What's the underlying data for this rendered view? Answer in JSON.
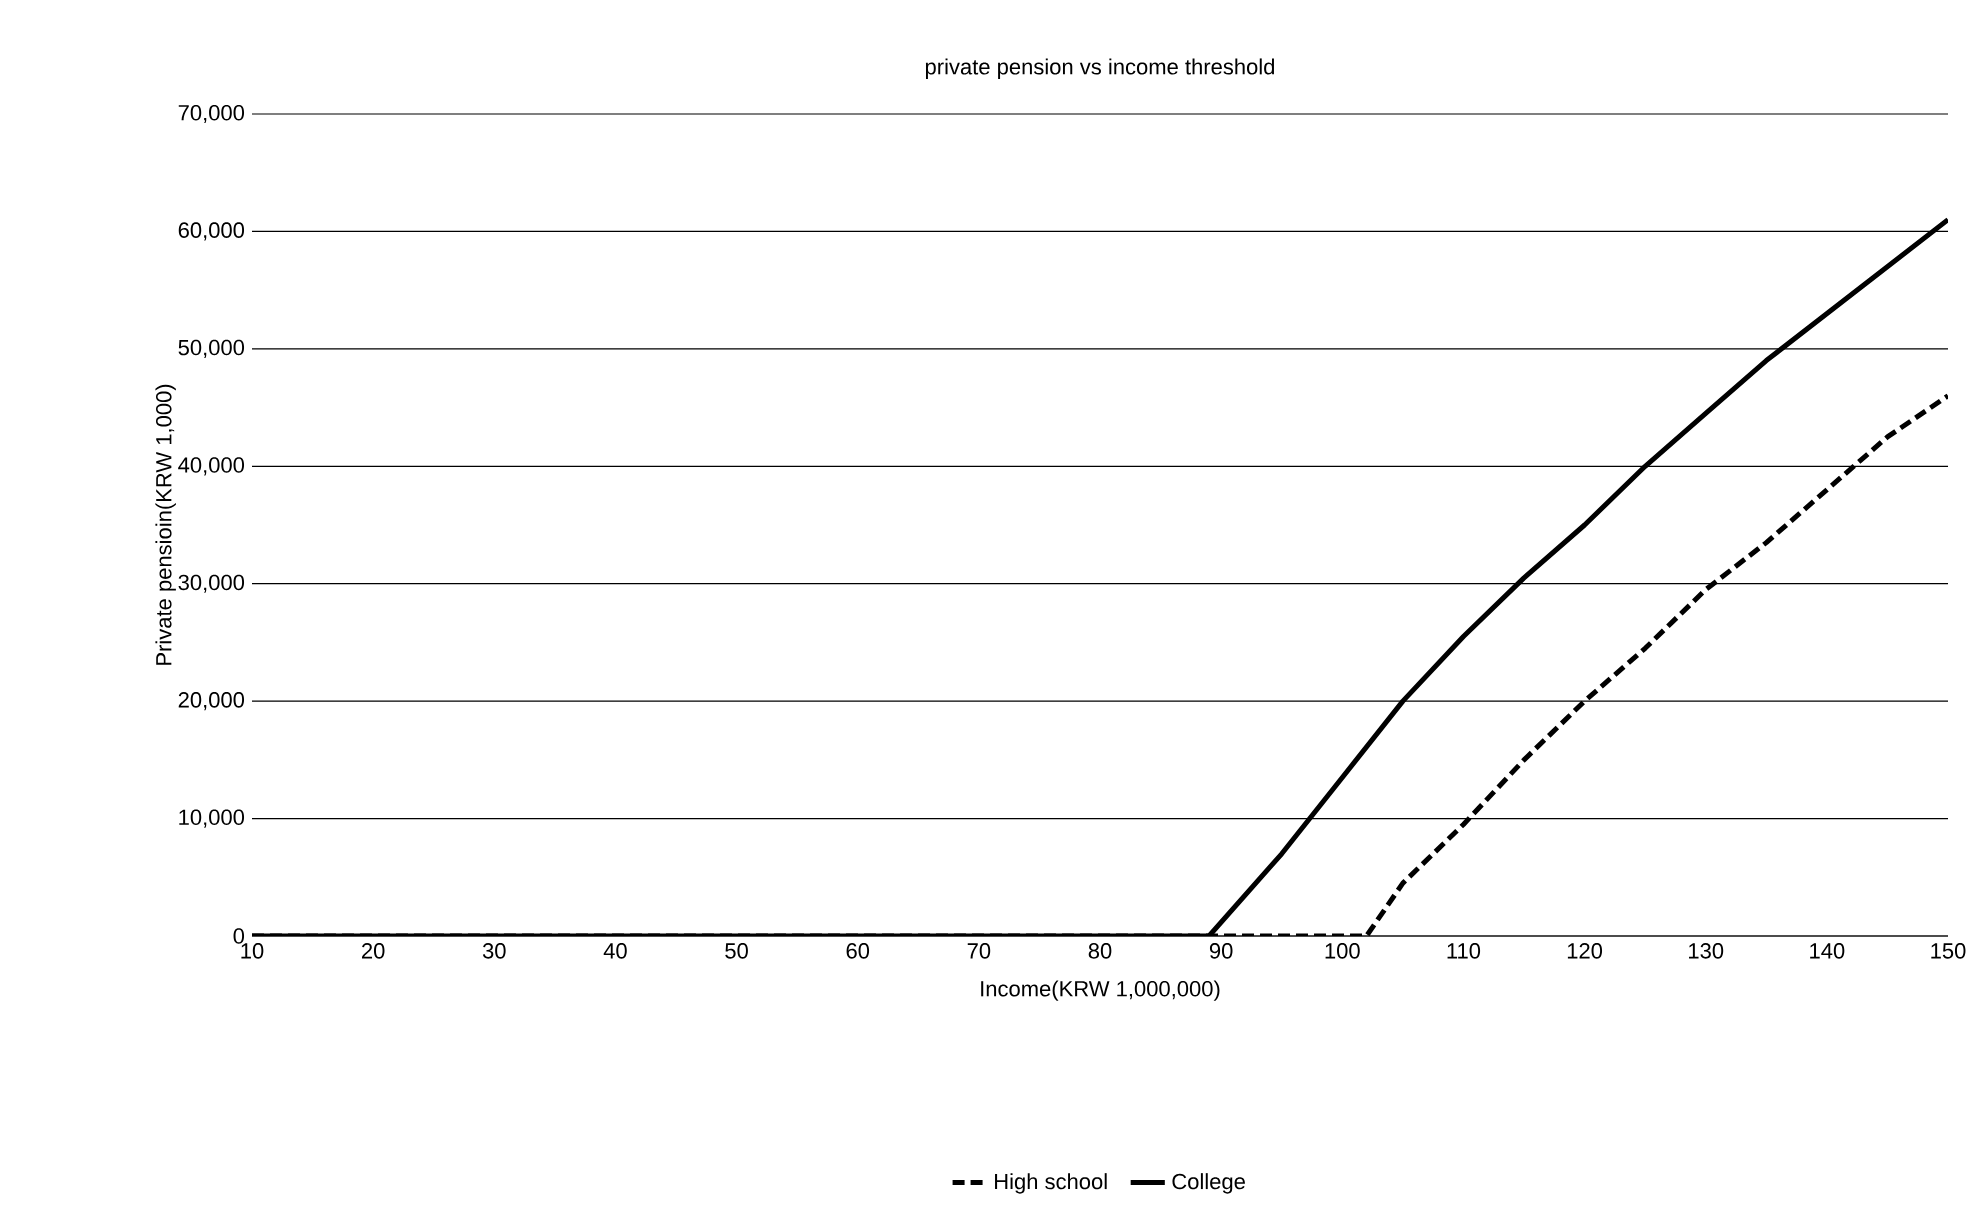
{
  "chart_data": {
    "type": "line",
    "title": "private pension vs income threshold",
    "xlabel": "Income(KRW 1,000,000)",
    "ylabel": "Private pensioin(KRW 1,000)",
    "xlim": [
      10,
      150
    ],
    "xticks": [
      10,
      20,
      30,
      40,
      50,
      60,
      70,
      80,
      90,
      100,
      110,
      120,
      130,
      140,
      150
    ],
    "ylim": [
      0,
      70000
    ],
    "yticks": [
      {
        "value": 0,
        "label": "0"
      },
      {
        "value": 10000,
        "label": "10,000"
      },
      {
        "value": 20000,
        "label": "20,000"
      },
      {
        "value": 30000,
        "label": "30,000"
      },
      {
        "value": 40000,
        "label": "40,000"
      },
      {
        "value": 50000,
        "label": "50,000"
      },
      {
        "value": 60000,
        "label": "60,000"
      },
      {
        "value": 70000,
        "label": "70,000"
      }
    ],
    "grid": "y",
    "legend": "bottom",
    "marker": "none",
    "series": [
      {
        "name": "High school",
        "color": "#000000",
        "line_style": "dashed",
        "x": [
          10,
          50,
          90,
          102,
          105,
          110,
          115,
          120,
          125,
          130,
          135,
          140,
          145,
          150
        ],
        "values": [
          0,
          0,
          0,
          0,
          4500,
          9500,
          15000,
          20000,
          24500,
          29500,
          33500,
          38000,
          42500,
          46000
        ]
      },
      {
        "name": "College",
        "color": "#000000",
        "line_style": "solid",
        "x": [
          10,
          50,
          89,
          95,
          100,
          105,
          110,
          115,
          120,
          125,
          130,
          135,
          140,
          145,
          150
        ],
        "values": [
          0,
          0,
          0,
          7000,
          13500,
          20000,
          25500,
          30500,
          35000,
          40000,
          44500,
          49000,
          53000,
          57000,
          61000
        ]
      }
    ]
  }
}
